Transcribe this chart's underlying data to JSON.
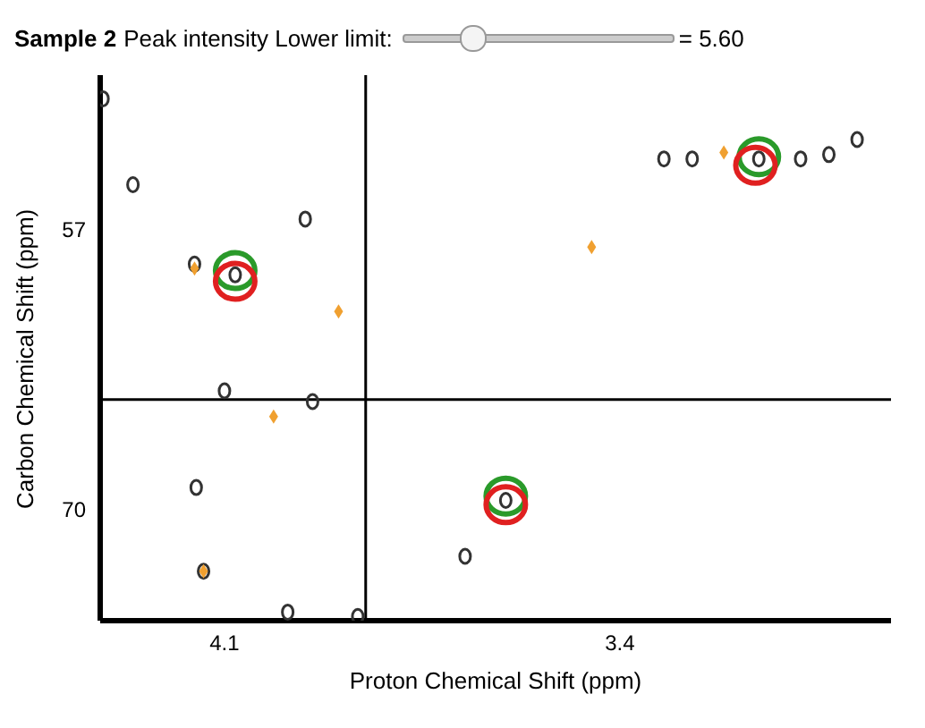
{
  "chart_data": {
    "type": "scatter",
    "title": "Sample 2",
    "subtitle": "Peak intensity Lower limit:",
    "annotations": [
      "= 5.60"
    ],
    "xlabel": "Proton Chemical Shift (ppm)",
    "ylabel": "Carbon Chemical Shift (ppm)",
    "xlim": [
      4.32,
      2.92
    ],
    "ylim": [
      75.2,
      49.8
    ],
    "xticks": [
      4.1,
      3.4
    ],
    "yticks": [
      57,
      70
    ],
    "grid": false,
    "marker": "circle",
    "ref_lines": [
      {
        "axis": "x",
        "value": 3.85,
        "color": "#000000"
      },
      {
        "axis": "y",
        "value": 64.9,
        "color": "#000000"
      }
    ],
    "series": [
      {
        "color": "#333333",
        "x": [
          4.315,
          4.262,
          4.153,
          4.081,
          3.957,
          4.1,
          3.944,
          4.15,
          4.137,
          3.988,
          3.864,
          3.602,
          3.674,
          3.322,
          3.272,
          3.154,
          3.08,
          3.03,
          2.98
        ],
        "values": [
          50.9,
          54.9,
          58.6,
          59.1,
          56.5,
          64.5,
          65.0,
          69.0,
          72.9,
          74.8,
          75.0,
          69.6,
          72.2,
          53.7,
          53.7,
          53.7,
          53.7,
          53.5,
          52.8
        ]
      },
      {
        "color": "#f0a030",
        "marker": "diamond",
        "x": [
          4.153,
          3.898,
          4.013,
          3.45,
          4.137,
          3.216
        ],
        "values": [
          58.8,
          60.8,
          65.7,
          57.8,
          72.9,
          53.4
        ]
      },
      {
        "color": "#2a9a2a",
        "x": [
          4.081,
          3.602,
          3.154
        ],
        "values": [
          58.9,
          69.4,
          53.6
        ]
      },
      {
        "color": "#e02020",
        "x": [
          4.081,
          3.602,
          3.16
        ],
        "values": [
          59.4,
          69.8,
          54.0
        ]
      }
    ]
  }
}
